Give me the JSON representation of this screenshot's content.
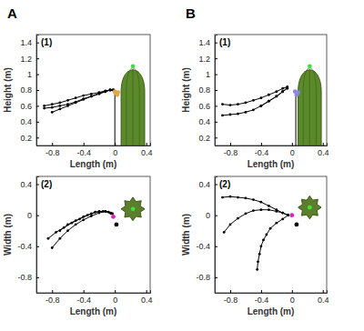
{
  "chart_data": [
    {
      "type": "line",
      "panel_label": "A",
      "title": "(1)",
      "x_label": "Length (m)",
      "y_label": "Height (m)",
      "xlim": [
        -1,
        0.45
      ],
      "ylim": [
        0.1,
        1.5
      ],
      "xticks": [
        -0.8,
        -0.4,
        0,
        0.4
      ],
      "yticks": [
        0.2,
        0.4,
        0.6,
        0.8,
        1,
        1.2,
        1.4
      ],
      "plant": {
        "x": [
          0.08,
          0.38
        ],
        "top": 1.1
      },
      "series": [
        {
          "type": "line",
          "color": "#000000",
          "marker": "circle",
          "line_style": "solid",
          "x": [
            -0.9,
            -0.8,
            -0.7,
            -0.6,
            -0.5,
            -0.4,
            -0.3,
            -0.2,
            -0.12,
            -0.06,
            -0.02
          ],
          "values": [
            0.57,
            0.58,
            0.6,
            0.62,
            0.65,
            0.69,
            0.72,
            0.76,
            0.78,
            0.8,
            0.8
          ]
        },
        {
          "type": "line",
          "color": "#000000",
          "marker": "circle",
          "line_style": "solid",
          "x": [
            -0.9,
            -0.8,
            -0.7,
            -0.6,
            -0.5,
            -0.4,
            -0.3,
            -0.2,
            -0.12,
            -0.06,
            -0.02
          ],
          "values": [
            0.6,
            0.62,
            0.64,
            0.67,
            0.7,
            0.73,
            0.75,
            0.77,
            0.79,
            0.8,
            0.8
          ]
        },
        {
          "type": "line",
          "color": "#000000",
          "marker": "circle",
          "line_style": "solid",
          "x": [
            -0.8,
            -0.7,
            -0.6,
            -0.5,
            -0.4,
            -0.3,
            -0.2,
            -0.12,
            -0.06,
            -0.02
          ],
          "values": [
            0.52,
            0.56,
            0.6,
            0.64,
            0.68,
            0.72,
            0.75,
            0.78,
            0.8,
            0.8
          ]
        },
        {
          "type": "line",
          "color": "#000000",
          "marker": "none",
          "line_style": "solid",
          "x": [
            0,
            0
          ],
          "values": [
            0.1,
            0.78
          ]
        },
        {
          "type": "scatter",
          "color": "#e0a84a",
          "marker": "circle",
          "x": [
            0.0,
            0.02,
            0.04,
            0.03
          ],
          "values": [
            0.78,
            0.76,
            0.77,
            0.74
          ]
        },
        {
          "type": "scatter",
          "color": "#40e040",
          "marker": "circle",
          "x": [
            0.23
          ],
          "values": [
            1.1
          ]
        }
      ]
    },
    {
      "type": "line",
      "title": "(2)",
      "x_label": "Length (m)",
      "y_label": "Width (m)",
      "xlim": [
        -1,
        0.45
      ],
      "ylim": [
        -1,
        0.5
      ],
      "xticks": [
        -0.8,
        -0.4,
        0,
        0.4
      ],
      "yticks": [
        -0.8,
        -0.4,
        0,
        0.4
      ],
      "plant": {
        "center": [
          0.23,
          0.08
        ],
        "radius": 0.15
      },
      "series": [
        {
          "type": "line",
          "color": "#000000",
          "marker": "circle",
          "line_style": "solid",
          "x": [
            -0.85,
            -0.75,
            -0.65,
            -0.55,
            -0.45,
            -0.35,
            -0.25,
            -0.15,
            -0.08,
            -0.03
          ],
          "values": [
            -0.3,
            -0.22,
            -0.16,
            -0.1,
            -0.05,
            0.0,
            0.04,
            0.05,
            0.04,
            0.02
          ]
        },
        {
          "type": "line",
          "color": "#000000",
          "marker": "circle",
          "line_style": "solid",
          "x": [
            -0.8,
            -0.7,
            -0.6,
            -0.5,
            -0.4,
            -0.3,
            -0.2,
            -0.12,
            -0.05
          ],
          "values": [
            -0.42,
            -0.3,
            -0.2,
            -0.12,
            -0.06,
            -0.01,
            0.03,
            0.05,
            0.03
          ]
        },
        {
          "type": "line",
          "color": "#000000",
          "marker": "circle",
          "line_style": "solid",
          "x": [
            -0.7,
            -0.6,
            -0.5,
            -0.4,
            -0.3,
            -0.2,
            -0.12,
            -0.05
          ],
          "values": [
            -0.2,
            -0.12,
            -0.07,
            -0.02,
            0.02,
            0.05,
            0.05,
            0.02
          ]
        },
        {
          "type": "scatter",
          "color": "#e020c0",
          "marker": "circle",
          "x": [
            -0.02
          ],
          "values": [
            -0.02
          ]
        },
        {
          "type": "scatter",
          "color": "#000000",
          "marker": "circle",
          "x": [
            0.02
          ],
          "values": [
            -0.12
          ]
        },
        {
          "type": "scatter",
          "color": "#40e040",
          "marker": "circle",
          "x": [
            0.23
          ],
          "values": [
            0.08
          ]
        }
      ]
    },
    {
      "type": "line",
      "panel_label": "B",
      "title": "(1)",
      "x_label": "Length (m)",
      "y_label": "Height (m)",
      "xlim": [
        -1,
        0.45
      ],
      "ylim": [
        0.1,
        1.5
      ],
      "xticks": [
        -0.8,
        -0.4,
        0,
        0.4
      ],
      "yticks": [
        0.2,
        0.4,
        0.6,
        0.8,
        1,
        1.2,
        1.4
      ],
      "plant": {
        "x": [
          0.08,
          0.38
        ],
        "top": 1.1
      },
      "series": [
        {
          "type": "line",
          "color": "#000000",
          "marker": "circle",
          "line_style": "solid",
          "x": [
            -0.9,
            -0.8,
            -0.7,
            -0.6,
            -0.5,
            -0.4,
            -0.3,
            -0.2,
            -0.12,
            -0.06
          ],
          "values": [
            0.62,
            0.61,
            0.62,
            0.64,
            0.67,
            0.7,
            0.74,
            0.78,
            0.82,
            0.84
          ]
        },
        {
          "type": "line",
          "color": "#000000",
          "marker": "circle",
          "line_style": "solid",
          "x": [
            -0.9,
            -0.8,
            -0.7,
            -0.6,
            -0.5,
            -0.4,
            -0.3,
            -0.2,
            -0.12,
            -0.06
          ],
          "values": [
            0.48,
            0.49,
            0.5,
            0.52,
            0.55,
            0.6,
            0.66,
            0.72,
            0.78,
            0.83
          ]
        },
        {
          "type": "line",
          "color": "#000000",
          "marker": "circle",
          "line_style": "solid",
          "x": [
            -0.4,
            -0.3,
            -0.2,
            -0.12,
            -0.06
          ],
          "values": [
            0.6,
            0.66,
            0.72,
            0.78,
            0.82
          ]
        },
        {
          "type": "line",
          "color": "#000000",
          "marker": "none",
          "line_style": "solid",
          "x": [
            0.05,
            0.05
          ],
          "values": [
            0.1,
            0.72
          ]
        },
        {
          "type": "scatter",
          "color": "#8a8ae0",
          "marker": "circle",
          "x": [
            0.04,
            0.06,
            0.08
          ],
          "values": [
            0.78,
            0.74,
            0.77
          ]
        },
        {
          "type": "scatter",
          "color": "#40e040",
          "marker": "circle",
          "x": [
            0.23
          ],
          "values": [
            1.1
          ]
        }
      ]
    },
    {
      "type": "line",
      "title": "(2)",
      "x_label": "Length (m)",
      "y_label": "Width (m)",
      "xlim": [
        -1,
        0.45
      ],
      "ylim": [
        -1,
        0.5
      ],
      "xticks": [
        -0.8,
        -0.4,
        0,
        0.4
      ],
      "yticks": [
        -0.8,
        -0.4,
        0,
        0.4
      ],
      "plant": {
        "center": [
          0.23,
          0.1
        ],
        "radius": 0.15
      },
      "series": [
        {
          "type": "line",
          "color": "#000000",
          "marker": "circle",
          "line_style": "solid",
          "x": [
            -0.9,
            -0.8,
            -0.7,
            -0.6,
            -0.5,
            -0.4,
            -0.3,
            -0.2,
            -0.12,
            -0.05
          ],
          "values": [
            0.23,
            0.24,
            0.23,
            0.22,
            0.2,
            0.17,
            0.12,
            0.07,
            0.03,
            0.0
          ]
        },
        {
          "type": "line",
          "color": "#000000",
          "marker": "circle",
          "line_style": "solid",
          "x": [
            -0.88,
            -0.8,
            -0.7,
            -0.6,
            -0.5,
            -0.4,
            -0.3,
            -0.2,
            -0.12,
            -0.05
          ],
          "values": [
            -0.22,
            -0.12,
            -0.04,
            0.02,
            0.06,
            0.07,
            0.07,
            0.05,
            0.03,
            0.0
          ]
        },
        {
          "type": "line",
          "color": "#000000",
          "marker": "circle",
          "line_style": "solid",
          "x": [
            -0.45,
            -0.44,
            -0.42,
            -0.4,
            -0.37,
            -0.33,
            -0.28,
            -0.2,
            -0.12,
            -0.05
          ],
          "values": [
            -0.7,
            -0.6,
            -0.5,
            -0.4,
            -0.32,
            -0.25,
            -0.17,
            -0.1,
            -0.05,
            0.0
          ]
        },
        {
          "type": "scatter",
          "color": "#e020c0",
          "marker": "circle",
          "x": [
            0.0
          ],
          "values": [
            0.0
          ]
        },
        {
          "type": "scatter",
          "color": "#000000",
          "marker": "circle",
          "x": [
            0.06
          ],
          "values": [
            -0.12
          ]
        },
        {
          "type": "scatter",
          "color": "#40e040",
          "marker": "circle",
          "x": [
            0.23
          ],
          "values": [
            0.1
          ]
        }
      ]
    }
  ]
}
